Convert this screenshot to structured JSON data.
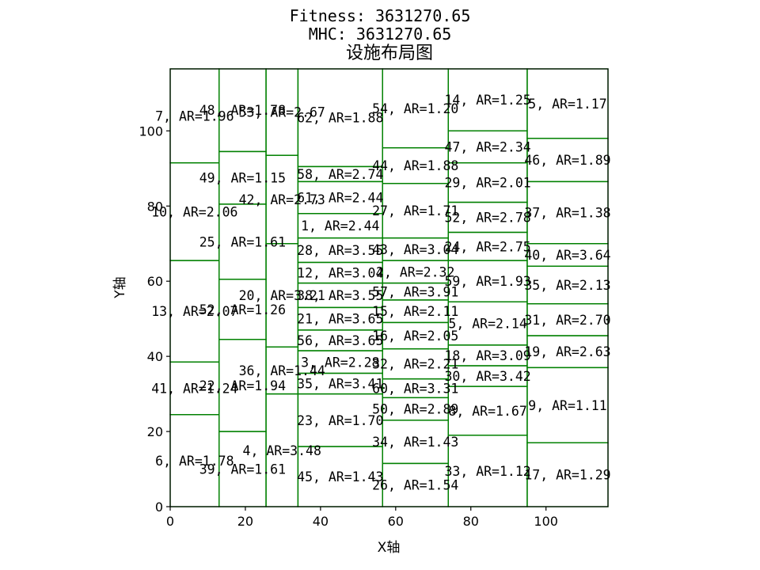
{
  "chart_data": {
    "type": "facility-layout",
    "title_lines": [
      "Fitness: 3631270.65",
      "MHC: 3631270.65"
    ],
    "title": "设施布局图",
    "xlabel": "X轴",
    "ylabel": "Y轴",
    "xlim": [
      0,
      116.5
    ],
    "ylim": [
      0,
      116.5
    ],
    "xticks": [
      0,
      20,
      40,
      60,
      80,
      100
    ],
    "yticks": [
      0,
      20,
      40,
      60,
      80,
      100
    ],
    "grid": false,
    "rect_color": "#008000",
    "columns": [
      {
        "x0": 0,
        "x1": 13,
        "facilities": [
          {
            "label": "6, AR=1.78",
            "y0": 0,
            "y1": 24.5
          },
          {
            "label": "41, AR=1.24",
            "y0": 24.5,
            "y1": 38.5
          },
          {
            "label": "13, AR=2.07",
            "y0": 38.5,
            "y1": 65.5
          },
          {
            "label": "10, AR=2.06",
            "y0": 65.5,
            "y1": 91.5
          },
          {
            "label": "7, AR=1.96",
            "y0": 91.5,
            "y1": 116.5
          }
        ]
      },
      {
        "x0": 13,
        "x1": 25.5,
        "facilities": [
          {
            "label": "39, AR=1.61",
            "y0": 0,
            "y1": 20
          },
          {
            "label": "22, AR=1.94",
            "y0": 20,
            "y1": 44.5
          },
          {
            "label": "52, AR=1.26",
            "y0": 44.5,
            "y1": 60.5
          },
          {
            "label": "25, AR=1.61",
            "y0": 60.5,
            "y1": 80.5
          },
          {
            "label": "49, AR=1.15",
            "y0": 80.5,
            "y1": 94.5
          },
          {
            "label": "48, AR=1.78",
            "y0": 94.5,
            "y1": 116.5
          }
        ]
      },
      {
        "x0": 25.5,
        "x1": 34,
        "facilities": [
          {
            "label": "4, AR=3.48",
            "y0": 0,
            "y1": 30
          },
          {
            "label": "36, AR=1.44",
            "y0": 30,
            "y1": 42.5
          },
          {
            "label": "20, AR=3.21",
            "y0": 42.5,
            "y1": 70
          },
          {
            "label": "42, AR=2.73",
            "y0": 70,
            "y1": 93.5
          },
          {
            "label": "53, AR=2.67",
            "y0": 93.5,
            "y1": 116.5
          }
        ]
      },
      {
        "x0": 34,
        "x1": 56.5,
        "facilities": [
          {
            "label": "45, AR=1.43",
            "y0": 0,
            "y1": 16
          },
          {
            "label": "23, AR=1.70",
            "y0": 16,
            "y1": 30
          },
          {
            "label": "35, AR=3.41",
            "y0": 30,
            "y1": 35.5
          },
          {
            "label": "3, AR=2.28",
            "y0": 35.5,
            "y1": 41.5
          },
          {
            "label": "56, AR=3.65",
            "y0": 41.5,
            "y1": 47
          },
          {
            "label": "21, AR=3.65",
            "y0": 47,
            "y1": 53
          },
          {
            "label": "38, AR=3.55",
            "y0": 53,
            "y1": 59.5
          },
          {
            "label": "12, AR=3.04",
            "y0": 59.5,
            "y1": 65
          },
          {
            "label": "28, AR=3.55",
            "y0": 65,
            "y1": 71.5
          },
          {
            "label": "1, AR=2.44",
            "y0": 71.5,
            "y1": 78
          },
          {
            "label": "61, AR=2.44",
            "y0": 78,
            "y1": 86.5
          },
          {
            "label": "58, AR=2.74",
            "y0": 86.5,
            "y1": 90.5
          },
          {
            "label": "62, AR=1.88",
            "y0": 90.5,
            "y1": 116.5
          }
        ]
      },
      {
        "x0": 56.5,
        "x1": 74,
        "facilities": [
          {
            "label": "26, AR=1.54",
            "y0": 0,
            "y1": 11.5
          },
          {
            "label": "34, AR=1.43",
            "y0": 11.5,
            "y1": 23
          },
          {
            "label": "50, AR=2.89",
            "y0": 23,
            "y1": 29
          },
          {
            "label": "60, AR=3.31",
            "y0": 29,
            "y1": 34
          },
          {
            "label": "32, AR=2.21",
            "y0": 34,
            "y1": 42
          },
          {
            "label": "16, AR=2.05",
            "y0": 42,
            "y1": 49
          },
          {
            "label": "15, AR=2.11",
            "y0": 49,
            "y1": 55
          },
          {
            "label": "57, AR=3.91",
            "y0": 55,
            "y1": 59.5
          },
          {
            "label": "2, AR=2.32",
            "y0": 59.5,
            "y1": 65.5
          },
          {
            "label": "43, AR=3.04",
            "y0": 65.5,
            "y1": 71.5
          },
          {
            "label": "27, AR=1.71",
            "y0": 71.5,
            "y1": 86
          },
          {
            "label": "44, AR=1.88",
            "y0": 86,
            "y1": 95.5
          },
          {
            "label": "54, AR=1.20",
            "y0": 95.5,
            "y1": 116.5
          }
        ]
      },
      {
        "x0": 74,
        "x1": 95,
        "facilities": [
          {
            "label": "33, AR=1.12",
            "y0": 0,
            "y1": 19
          },
          {
            "label": "8, AR=1.67",
            "y0": 19,
            "y1": 32
          },
          {
            "label": "30, AR=3.42",
            "y0": 32,
            "y1": 37.5
          },
          {
            "label": "18, AR=3.09",
            "y0": 37.5,
            "y1": 43
          },
          {
            "label": "5, AR=2.14",
            "y0": 43,
            "y1": 54.5
          },
          {
            "label": "59, AR=1.93",
            "y0": 54.5,
            "y1": 65.5
          },
          {
            "label": "24, AR=2.75",
            "y0": 65.5,
            "y1": 73
          },
          {
            "label": "52, AR=2.78",
            "y0": 73,
            "y1": 81
          },
          {
            "label": "29, AR=2.01",
            "y0": 81,
            "y1": 91.5
          },
          {
            "label": "47, AR=2.34",
            "y0": 91.5,
            "y1": 100
          },
          {
            "label": "14, AR=1.25",
            "y0": 100,
            "y1": 116.5
          }
        ]
      },
      {
        "x0": 95,
        "x1": 116.5,
        "facilities": [
          {
            "label": "17, AR=1.29",
            "y0": 0,
            "y1": 17
          },
          {
            "label": "9, AR=1.11",
            "y0": 17,
            "y1": 37
          },
          {
            "label": "19, AR=2.63",
            "y0": 37,
            "y1": 45.5
          },
          {
            "label": "31, AR=2.70",
            "y0": 45.5,
            "y1": 54
          },
          {
            "label": "35, AR=2.13",
            "y0": 54,
            "y1": 64
          },
          {
            "label": "40, AR=3.64",
            "y0": 64,
            "y1": 70
          },
          {
            "label": "37, AR=1.38",
            "y0": 70,
            "y1": 86.5
          },
          {
            "label": "46, AR=1.89",
            "y0": 86.5,
            "y1": 98
          },
          {
            "label": "5, AR=1.17",
            "y0": 98,
            "y1": 116.5
          }
        ]
      }
    ]
  }
}
